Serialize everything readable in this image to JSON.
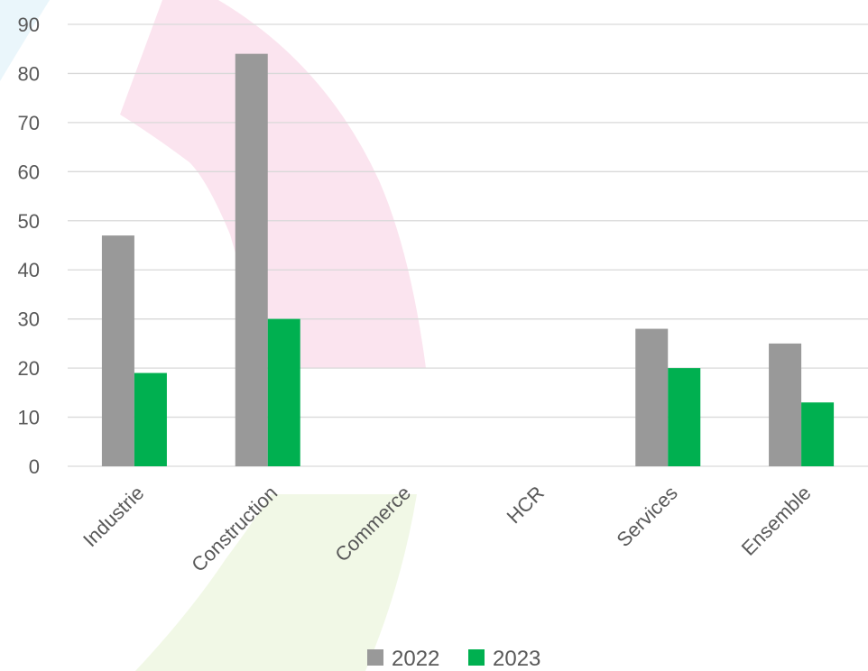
{
  "chart_data": {
    "type": "bar",
    "categories": [
      "Industrie",
      "Construction",
      "Commerce",
      "HCR",
      "Services",
      "Ensemble"
    ],
    "series": [
      {
        "name": "2022",
        "values": [
          47,
          84,
          null,
          null,
          28,
          25
        ]
      },
      {
        "name": "2023",
        "values": [
          19,
          30,
          null,
          null,
          20,
          13
        ]
      }
    ],
    "y_ticks": [
      "0",
      "10",
      "20",
      "30",
      "40",
      "50",
      "60",
      "70",
      "80",
      "90"
    ],
    "ylim": [
      0,
      90
    ],
    "grid": true,
    "legend_position": "bottom"
  },
  "colors": {
    "series_2022": "#999999",
    "series_2023": "#00b050",
    "gridline": "#d9d9d9",
    "text": "#595959",
    "watermark_pink": "#fbe4ef",
    "watermark_green": "#f1f8e6",
    "watermark_blue": "#eaf6fb"
  }
}
